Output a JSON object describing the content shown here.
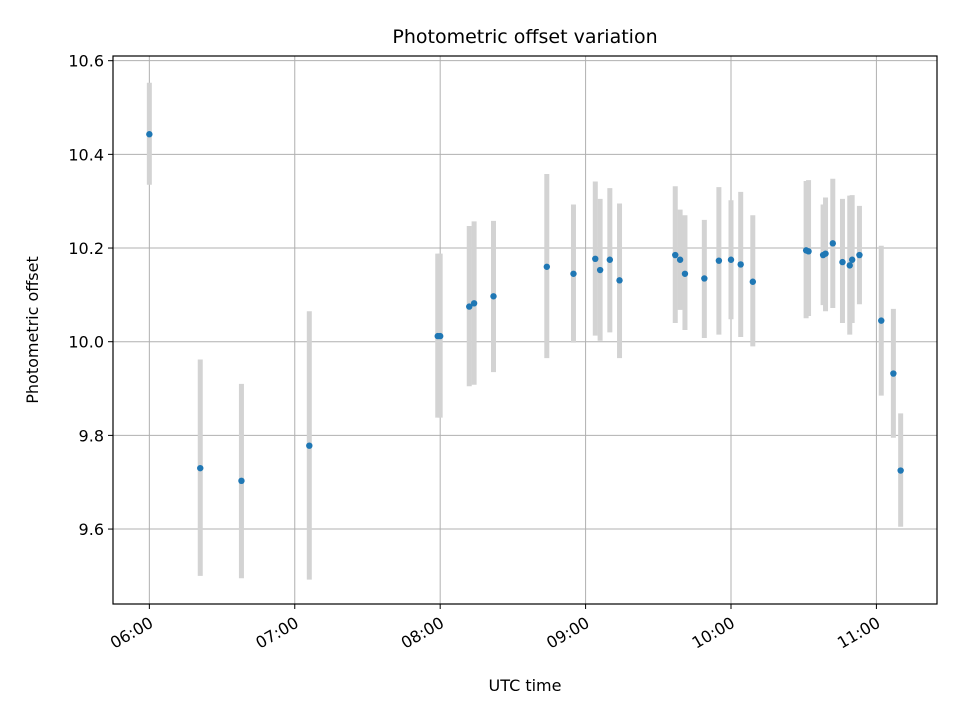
{
  "chart_data": {
    "type": "scatter",
    "title": "Photometric offset variation",
    "xlabel": "UTC time",
    "ylabel": "Photometric offset",
    "x_tick_labels": [
      "06:00",
      "07:00",
      "08:00",
      "09:00",
      "10:00",
      "11:00"
    ],
    "y_tick_labels": [
      "9.6",
      "9.8",
      "10.0",
      "10.2",
      "10.4",
      "10.6"
    ],
    "xlim": [
      "05:45",
      "11:25"
    ],
    "ylim": [
      9.44,
      10.61
    ],
    "grid": true,
    "colors": {
      "marker": "#1f77b4",
      "errorbar": "#d3d3d3"
    },
    "points": [
      {
        "x": "06:00",
        "y": 10.443,
        "err_low": 10.335,
        "err_high": 10.553
      },
      {
        "x": "06:21",
        "y": 9.73,
        "err_low": 9.5,
        "err_high": 9.962
      },
      {
        "x": "06:38",
        "y": 9.703,
        "err_low": 9.495,
        "err_high": 9.91
      },
      {
        "x": "07:06",
        "y": 9.778,
        "err_low": 9.492,
        "err_high": 10.065
      },
      {
        "x": "07:59",
        "y": 10.012,
        "err_low": 9.838,
        "err_high": 10.188
      },
      {
        "x": "08:00",
        "y": 10.012,
        "err_low": 9.838,
        "err_high": 10.188
      },
      {
        "x": "08:12",
        "y": 10.075,
        "err_low": 9.905,
        "err_high": 10.247
      },
      {
        "x": "08:14",
        "y": 10.082,
        "err_low": 9.908,
        "err_high": 10.257
      },
      {
        "x": "08:22",
        "y": 10.097,
        "err_low": 9.935,
        "err_high": 10.258
      },
      {
        "x": "08:44",
        "y": 10.16,
        "err_low": 9.965,
        "err_high": 10.358
      },
      {
        "x": "08:55",
        "y": 10.145,
        "err_low": 9.998,
        "err_high": 10.293
      },
      {
        "x": "09:04",
        "y": 10.177,
        "err_low": 10.013,
        "err_high": 10.342
      },
      {
        "x": "09:06",
        "y": 10.153,
        "err_low": 10.002,
        "err_high": 10.305
      },
      {
        "x": "09:10",
        "y": 10.175,
        "err_low": 10.02,
        "err_high": 10.328
      },
      {
        "x": "09:14",
        "y": 10.131,
        "err_low": 9.965,
        "err_high": 10.295
      },
      {
        "x": "09:37",
        "y": 10.185,
        "err_low": 10.04,
        "err_high": 10.332
      },
      {
        "x": "09:39",
        "y": 10.175,
        "err_low": 10.068,
        "err_high": 10.282
      },
      {
        "x": "09:41",
        "y": 10.145,
        "err_low": 10.025,
        "err_high": 10.27
      },
      {
        "x": "09:49",
        "y": 10.135,
        "err_low": 10.008,
        "err_high": 10.26
      },
      {
        "x": "09:55",
        "y": 10.173,
        "err_low": 10.015,
        "err_high": 10.33
      },
      {
        "x": "10:00",
        "y": 10.175,
        "err_low": 10.048,
        "err_high": 10.302
      },
      {
        "x": "10:04",
        "y": 10.165,
        "err_low": 10.01,
        "err_high": 10.32
      },
      {
        "x": "10:09",
        "y": 10.128,
        "err_low": 9.99,
        "err_high": 10.27
      },
      {
        "x": "10:31",
        "y": 10.195,
        "err_low": 10.05,
        "err_high": 10.343
      },
      {
        "x": "10:32",
        "y": 10.193,
        "err_low": 10.055,
        "err_high": 10.345
      },
      {
        "x": "10:38",
        "y": 10.185,
        "err_low": 10.078,
        "err_high": 10.293
      },
      {
        "x": "10:39",
        "y": 10.188,
        "err_low": 10.065,
        "err_high": 10.308
      },
      {
        "x": "10:42",
        "y": 10.21,
        "err_low": 10.072,
        "err_high": 10.348
      },
      {
        "x": "10:46",
        "y": 10.17,
        "err_low": 10.04,
        "err_high": 10.305
      },
      {
        "x": "10:49",
        "y": 10.163,
        "err_low": 10.015,
        "err_high": 10.312
      },
      {
        "x": "10:50",
        "y": 10.175,
        "err_low": 10.04,
        "err_high": 10.313
      },
      {
        "x": "10:53",
        "y": 10.185,
        "err_low": 10.08,
        "err_high": 10.29
      },
      {
        "x": "11:02",
        "y": 10.045,
        "err_low": 9.885,
        "err_high": 10.205
      },
      {
        "x": "11:07",
        "y": 9.932,
        "err_low": 9.795,
        "err_high": 10.07
      },
      {
        "x": "11:10",
        "y": 9.725,
        "err_low": 9.605,
        "err_high": 9.847
      }
    ]
  }
}
